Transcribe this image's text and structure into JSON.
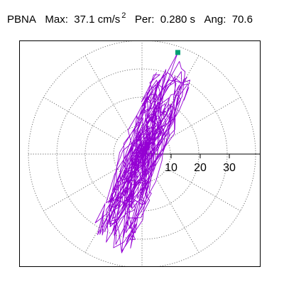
{
  "header": {
    "station": "PBNA",
    "max_label": "Max:",
    "max_value": "37.1",
    "max_unit": "cm/s",
    "max_unit_exp": "2",
    "per_label": "Per:",
    "per_value": "0.280 s",
    "ang_label": "Ang:",
    "ang_value": "70.6"
  },
  "chart_data": {
    "type": "polar-orbit",
    "title": "PBNA  Max: 37.1 cm/s2  Per: 0.280 s  Ang: 70.6",
    "max_value": 37.1,
    "max_unit": "cm/s2",
    "period_s": 0.28,
    "angle_deg": 70.6,
    "radial_ticks": [
      10,
      20,
      30
    ],
    "radial_tick_labels": [
      "10",
      "20",
      "30"
    ],
    "angular_gridlines_deg": [
      0,
      30,
      60,
      90,
      120,
      150,
      180,
      210,
      240,
      270,
      300,
      330
    ],
    "grid": "dotted",
    "trace_color": "#9400D3",
    "max_marker_color": "#009E73",
    "max_marker_point": {
      "x": 12.3,
      "y": 34.9
    }
  }
}
